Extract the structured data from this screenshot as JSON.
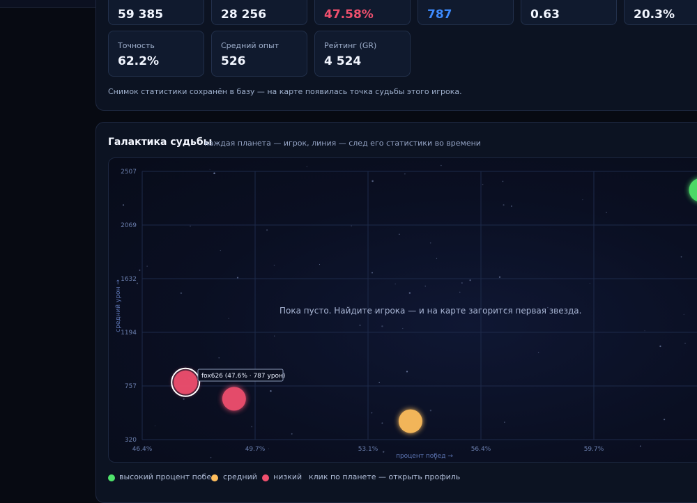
{
  "top_stats": [
    {
      "value": "59 385",
      "color": "#f2f6ff"
    },
    {
      "value": "28 256",
      "color": "#f2f6ff"
    },
    {
      "value": "47.58%",
      "color": "#f0506e"
    },
    {
      "value": "787",
      "color": "#3d8bff"
    },
    {
      "value": "0.63",
      "color": "#f2f6ff"
    },
    {
      "value": "20.3%",
      "color": "#f2f6ff"
    }
  ],
  "stats": [
    {
      "label": "Точность",
      "value": "62.2%"
    },
    {
      "label": "Средний опыт",
      "value": "526"
    },
    {
      "label": "Рейтинг (GR)",
      "value": "4 524"
    }
  ],
  "snapshot_note": "Снимок статистики сохранён в базу — на карте появилась точка судьбы этого игрока.",
  "galaxy": {
    "title": "Галактика судьбы",
    "subtitle": "каждая планета — игрок, линия — след его статистики во времени",
    "empty_message": "Пока пусто. Найдите игрока — и на карте загорится первая звезда.",
    "tooltip": "fox626  (47.6% · 787 урон)"
  },
  "legend": {
    "high": "высокий процент побед",
    "mid": "средний",
    "low": "низкий",
    "hint": "клик по планете — открыть профиль"
  },
  "colors": {
    "high": "#4fe36b",
    "mid": "#ffbe5c",
    "low": "#f0506e",
    "selected_ring": "#ffffff"
  },
  "chart_data": {
    "type": "scatter",
    "xlabel": "процент побед →",
    "ylabel": "средний урон →",
    "x_ticks": [
      "46.4%",
      "49.7%",
      "53.1%",
      "56.4%",
      "59.7%"
    ],
    "y_ticks": [
      "2507",
      "2069",
      "1632",
      "1194",
      "757",
      "320"
    ],
    "xlim": [
      46.4,
      61.8
    ],
    "ylim": [
      320,
      2507
    ],
    "points": [
      {
        "x": 47.58,
        "y": 787,
        "category": "low",
        "selected": true
      },
      {
        "x": 48.9,
        "y": 653,
        "category": "low",
        "selected": false
      },
      {
        "x": 53.7,
        "y": 470,
        "category": "mid",
        "selected": false
      },
      {
        "x": 61.6,
        "y": 2355,
        "category": "high",
        "selected": false
      }
    ]
  }
}
